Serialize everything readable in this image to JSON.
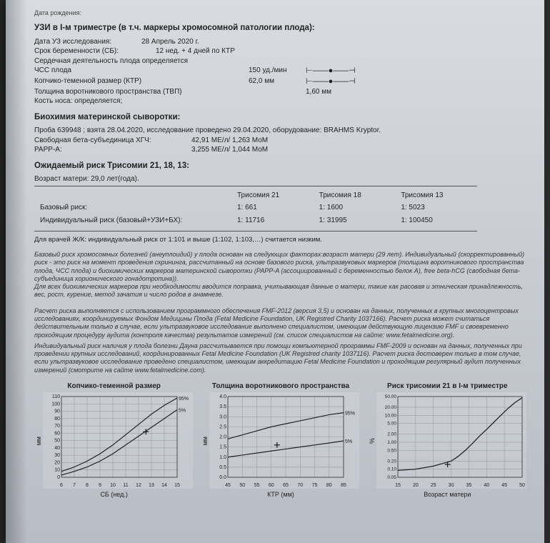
{
  "top_line": "Дата рождения:",
  "us": {
    "heading": "УЗИ в I-м триместре (в т.ч. маркеры хромосомной патологии плода):",
    "date_label": "Дата УЗ исследования:",
    "date_value": "28 Апрель 2020 г.",
    "ga_label": "Срок беременности (СБ):",
    "ga_value": "12 нед. + 4 дней по КТР",
    "cardiac": "Сердечная деятельность плода  определяется",
    "fhr_label": "ЧСС плода",
    "fhr_value": "150 уд./мин",
    "crl_label": "Копчико-теменной размер (КТР)",
    "crl_value": "62,0 мм",
    "nt_label": "Толщина воротникового пространства (ТВП)",
    "nt_value": "1,60 мм",
    "nb_label": "Кость носа: определяется;"
  },
  "maternal": {
    "heading": "Биохимия материнской сыворотки:",
    "sample": "Проба 639948 ; взята 28.04.2020, исследование проведено 29.04.2020, оборудование: BRAHMS Kryptor.",
    "hcg_label": "Свободная бета-субъединица ХГЧ:",
    "hcg_value": "42,91 МЕ/л/ 1,263 МоМ",
    "papp_label": "PAPP-A:",
    "papp_value": "3,255 МЕ/л/ 1,044 МоМ"
  },
  "risk": {
    "heading": "Ожидаемый риск Трисомии 21, 18, 13:",
    "age_label": "Возраст матери: 29,0 лет(года).",
    "cols": [
      "",
      "Трисомия 21",
      "Трисомия 18",
      "Трисомия 13"
    ],
    "rows": [
      {
        "label": "Базовый риск:",
        "t21": "1: 661",
        "t18": "1: 1600",
        "t13": "1: 5023"
      },
      {
        "label": "Индивидуальный риск (базовый+УЗИ+БХ):",
        "t21": "1: 11716",
        "t18": "1: 31995",
        "t13": "1: 100450"
      }
    ]
  },
  "note": "Для врачей Ж/К: индивидуальный риск от 1:101 и выше (1:102, 1:103,…) считается низким.",
  "fine": {
    "p1": "<p>Базовый риск хромосомных болезней (анеуплоидий) у плода  основан на следующих факторах:возраст матери (29 лет). Индивидуальный (скорректированный) риск - это риск на момент проведения скрининга, рассчитанный на основе базового риска, ультразвуковых маркеров (толщина воротникового пространства плода, ЧСС плода) и биохимических маркеров материнской сыворотки (PAPP-A (ассоциированный с беременностью белок A), free beta-hCG (свободная бета-субъединица хорионического гонадотропина)). <br/>Для всех биохимических маркеров при необходимости вводится поправка, учитывающая данные о матери, такие как расовая и этническая принадлежность, вес, рост, курение, метод зачатия и число родов в анамнезе.<br/><br/>Расчет риска выполняется с использованием программного обеспечения FMF-2012 (версия 3,5) и основан на данных, полученных в крупных многоцентровых исследованиях, координируемых Фондом Медицины Плода (Fetal Medicine Foundation, UK Registred Charity 1037166). Расчет риска может считаться действительным только в случае, если ультразвуковое исследование выполнено специалистом, имеющим действующую лицензию FMF и своевременно проходящим процедуру аудита (контроля качества) результатов измерений (см. список специалистов на сайте: www.fetalmedicine.org).</p>",
    "p2": "Индивидуальный риск наличия у плода болезни Дауна рассчитывается при помощи компьютерной программы FMF-2009 и основан на данных, полученных при проведении крупных исследований, координированных Fetal Medicine Foundation (UK Registred charity 1037116). Расчет риска достоверен только в том случае, если ультразвуковое исследование проведено специалистом, имеющим аккредитацию Fetal Medicine Foundation и проходящим регулярный аудит полученных измерений (смотрите на сайте www.fetalmedicine.com)."
  },
  "charts": {
    "crl": {
      "title": "Копчико-теменной размер",
      "xlabel": "СБ (нед.)",
      "ylabel": "мм",
      "xlim": [
        6,
        15
      ],
      "xtick_step": 1,
      "ylim": [
        0,
        110
      ],
      "ytick_step": 10,
      "p95": [
        [
          6,
          8
        ],
        [
          7,
          14
        ],
        [
          8,
          22
        ],
        [
          9,
          32
        ],
        [
          10,
          44
        ],
        [
          11,
          58
        ],
        [
          12,
          72
        ],
        [
          13,
          86
        ],
        [
          14,
          98
        ],
        [
          15,
          108
        ]
      ],
      "p5": [
        [
          6,
          3
        ],
        [
          7,
          8
        ],
        [
          8,
          14
        ],
        [
          9,
          22
        ],
        [
          10,
          32
        ],
        [
          11,
          44
        ],
        [
          12,
          56
        ],
        [
          13,
          68
        ],
        [
          14,
          80
        ],
        [
          15,
          92
        ]
      ],
      "marker": [
        12.57,
        62
      ],
      "pct_labels": {
        "hi": "95%",
        "lo": "5%"
      }
    },
    "nt": {
      "title": "Толщина воротникового пространства",
      "xlabel": "КТР (мм)",
      "ylabel": "мм",
      "xlim": [
        45,
        85
      ],
      "xtick_step": 5,
      "ylim": [
        0,
        4.0
      ],
      "ytick_step": 0.5,
      "p95": [
        [
          45,
          1.9
        ],
        [
          50,
          2.1
        ],
        [
          55,
          2.3
        ],
        [
          60,
          2.5
        ],
        [
          65,
          2.65
        ],
        [
          70,
          2.8
        ],
        [
          75,
          2.95
        ],
        [
          80,
          3.1
        ],
        [
          85,
          3.2
        ]
      ],
      "p5": [
        [
          45,
          1.0
        ],
        [
          50,
          1.1
        ],
        [
          55,
          1.2
        ],
        [
          60,
          1.3
        ],
        [
          65,
          1.4
        ],
        [
          70,
          1.5
        ],
        [
          75,
          1.6
        ],
        [
          80,
          1.7
        ],
        [
          85,
          1.8
        ]
      ],
      "marker": [
        62,
        1.6
      ],
      "pct_labels": {
        "hi": "95%",
        "lo": "5%"
      }
    },
    "t21": {
      "title": "Риск трисомии 21 в I-м триместре",
      "xlabel": "Возраст матери",
      "ylabel": "%",
      "xlim": [
        15,
        50
      ],
      "xtick_step": 5,
      "ylim_log": [
        0.05,
        50
      ],
      "yticks": [
        0.05,
        0.1,
        0.2,
        0.5,
        1.0,
        2.0,
        5.0,
        10.0,
        20.0,
        50.0
      ],
      "curve": [
        [
          15,
          0.09
        ],
        [
          20,
          0.1
        ],
        [
          25,
          0.13
        ],
        [
          30,
          0.2
        ],
        [
          32,
          0.3
        ],
        [
          34,
          0.5
        ],
        [
          36,
          0.9
        ],
        [
          38,
          1.7
        ],
        [
          40,
          3.0
        ],
        [
          42,
          5.5
        ],
        [
          44,
          10
        ],
        [
          46,
          18
        ],
        [
          48,
          30
        ],
        [
          50,
          45
        ]
      ],
      "marker": [
        29,
        0.15
      ]
    },
    "line_color": "#222222",
    "grid_color": "#888888",
    "marker_color": "#000000"
  }
}
